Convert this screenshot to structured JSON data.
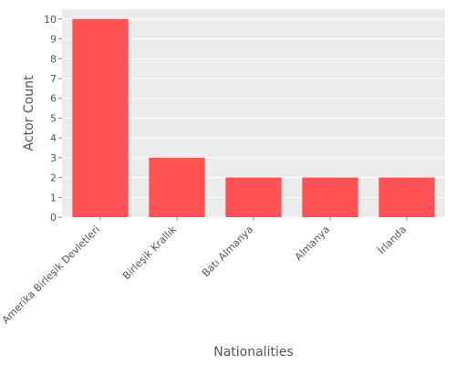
{
  "chart_data": {
    "type": "bar",
    "title": "",
    "xlabel": "Nationalities",
    "ylabel": "Actor Count",
    "categories": [
      "Amerika Birleşik Devletleri",
      "Birleşik Krallık",
      "Batı Almanya",
      "Almanya",
      "İrlanda"
    ],
    "values": [
      10,
      3,
      2,
      2,
      2
    ],
    "ylim": [
      0,
      10.5
    ],
    "yticks": [
      0,
      1,
      2,
      3,
      4,
      5,
      6,
      7,
      8,
      9,
      10
    ],
    "grid": true,
    "legend": "none",
    "colors": {
      "bar": "#FF5254",
      "plot_background": "#EBEBEB",
      "grid": "#FFFFFF",
      "text": "#555555"
    }
  }
}
